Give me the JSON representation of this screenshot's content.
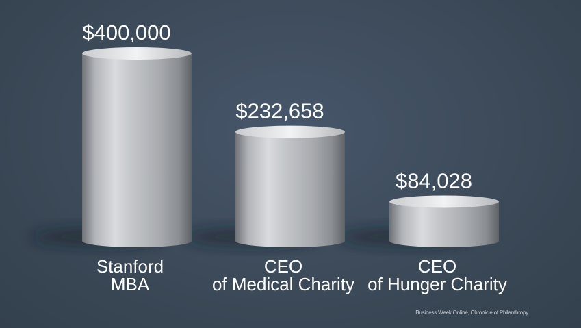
{
  "chart_data": {
    "type": "bar",
    "style": "3d-cylinder",
    "categories": [
      [
        "Stanford",
        "MBA"
      ],
      [
        "CEO",
        "of Medical Charity"
      ],
      [
        "CEO",
        "of Hunger Charity"
      ]
    ],
    "values": [
      400000,
      232658,
      84028
    ],
    "value_labels": [
      "$400,000",
      "$232,658",
      "$84,028"
    ],
    "title": "",
    "xlabel": "",
    "ylabel": "",
    "ylim": [
      0,
      400000
    ],
    "grid": false,
    "legend": "none"
  },
  "source": "Business Week Online,  Chronicle of Philanthropy",
  "colors": {
    "background": "#3c4a59",
    "bar": "#b9bcc0",
    "text": "#ffffff"
  }
}
